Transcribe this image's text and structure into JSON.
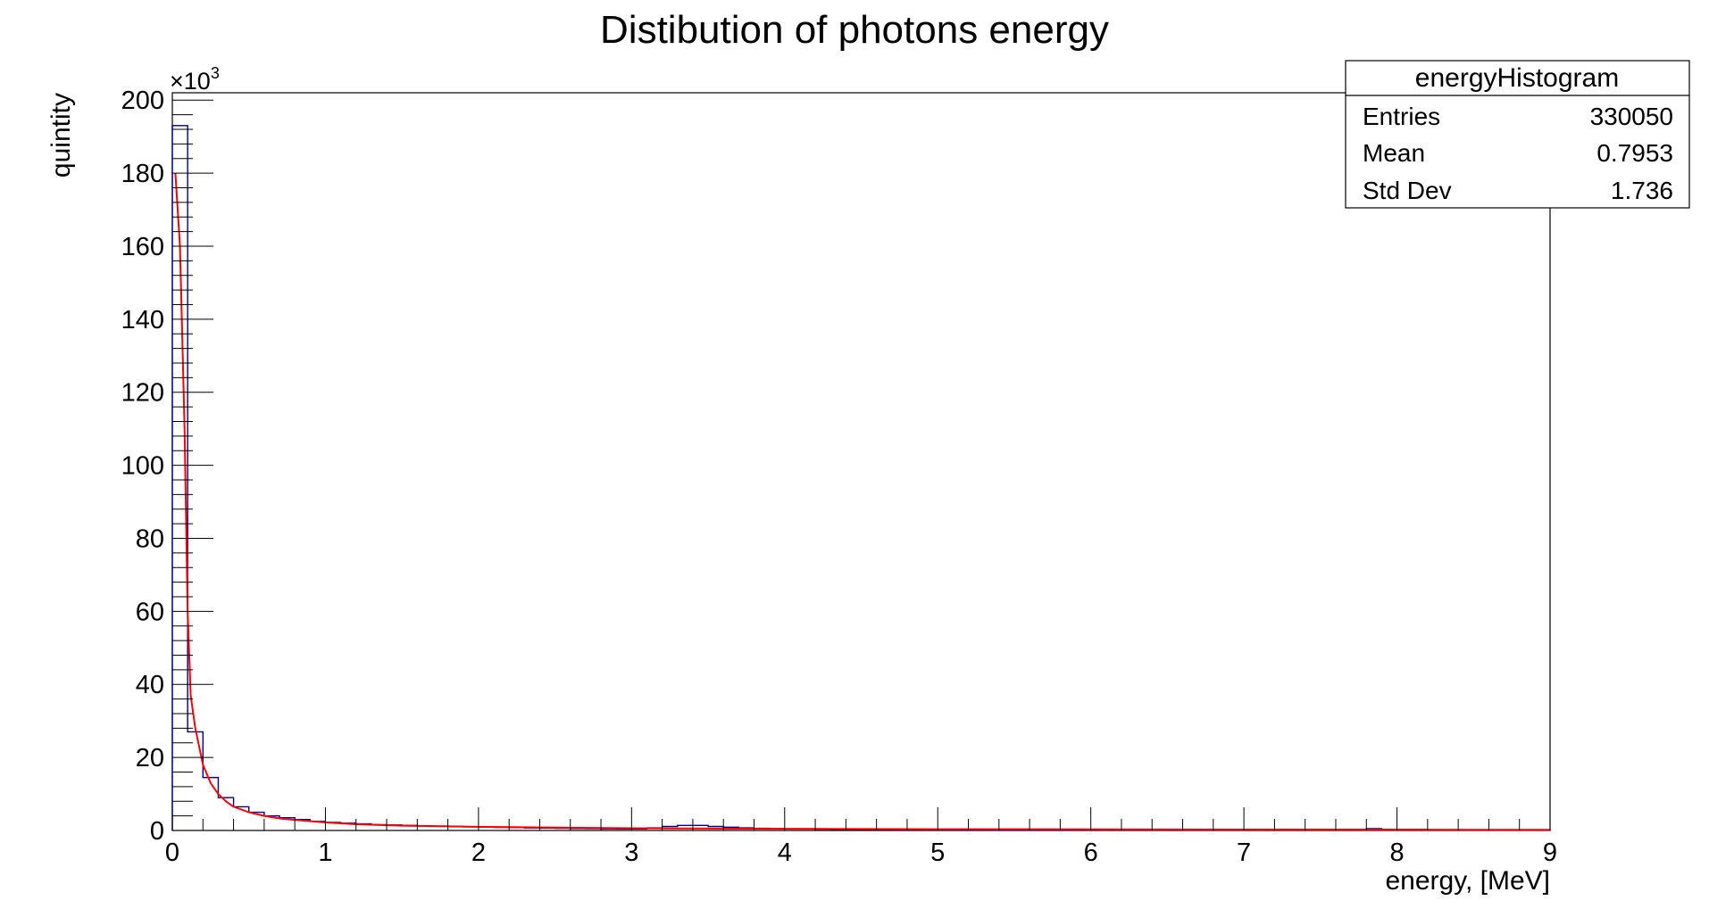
{
  "chart_data": {
    "type": "bar",
    "title": "Distibution of photons energy",
    "xlabel": "energy, [MeV]",
    "ylabel": "quintity",
    "y_multiplier": "×10",
    "y_multiplier_exp": "3",
    "xlim": [
      0,
      9
    ],
    "ylim": [
      0,
      202
    ],
    "x_ticks": [
      "0",
      "1",
      "2",
      "3",
      "4",
      "5",
      "6",
      "7",
      "8",
      "9"
    ],
    "y_ticks": [
      "0",
      "20",
      "40",
      "60",
      "80",
      "100",
      "120",
      "140",
      "160",
      "180",
      "200"
    ],
    "grid": false,
    "legend_placement": "top-right",
    "stats": {
      "name": "energyHistogram",
      "rows": [
        {
          "label": "Entries",
          "value": "330050"
        },
        {
          "label": "Mean",
          "value": "0.7953"
        },
        {
          "label": "Std Dev",
          "value": "1.736"
        }
      ]
    },
    "series": [
      {
        "style": "histogram",
        "color": "#00007f",
        "bin_width": 0.1,
        "values": [
          193,
          27,
          14.5,
          9,
          6.5,
          5,
          4,
          3.5,
          3,
          2.5,
          2.2,
          2,
          1.8,
          1.6,
          1.5,
          1.4,
          1.3,
          1.2,
          1.1,
          1.0,
          0.9,
          0.85,
          0.8,
          0.7,
          0.65,
          0.6,
          0.55,
          0.5,
          0.45,
          0.4,
          0.4,
          0.7,
          1.1,
          1.4,
          1.4,
          1.1,
          0.9,
          0.7,
          0.6,
          0.5,
          0.45,
          0.4,
          0.35,
          0.3,
          0.3,
          0.25,
          0.2,
          0.2,
          0.2,
          0.2,
          0.15,
          0.15,
          0.15,
          0.1,
          0.1,
          0.1,
          0.1,
          0.1,
          0.1,
          0.1,
          0.1,
          0.1,
          0.1,
          0.1,
          0.1,
          0.1,
          0.1,
          0.1,
          0.1,
          0.1,
          0.25,
          0.3,
          0.3,
          0.3,
          0.3,
          0.3,
          0.3,
          0.3,
          0.5,
          0.3,
          0.3,
          0.3,
          0.2,
          0.2,
          0.1,
          0.1,
          0.1,
          0.1,
          0.1,
          0.1
        ]
      },
      {
        "style": "fit",
        "color": "#ff0000",
        "x": [
          0.02,
          0.05,
          0.08,
          0.1,
          0.12,
          0.15,
          0.2,
          0.25,
          0.3,
          0.35,
          0.4,
          0.5,
          0.6,
          0.7,
          0.8,
          1.0,
          1.2,
          1.5,
          2.0,
          2.5,
          3.0,
          4.0,
          5.0,
          6.0,
          7.0,
          8.0,
          9.0
        ],
        "y": [
          180,
          160,
          110,
          60,
          37,
          28,
          18,
          13,
          10,
          8,
          6.5,
          5,
          4,
          3.3,
          2.9,
          2.2,
          1.7,
          1.3,
          1.0,
          0.8,
          0.6,
          0.45,
          0.35,
          0.3,
          0.25,
          0.2,
          0.18
        ]
      }
    ]
  }
}
